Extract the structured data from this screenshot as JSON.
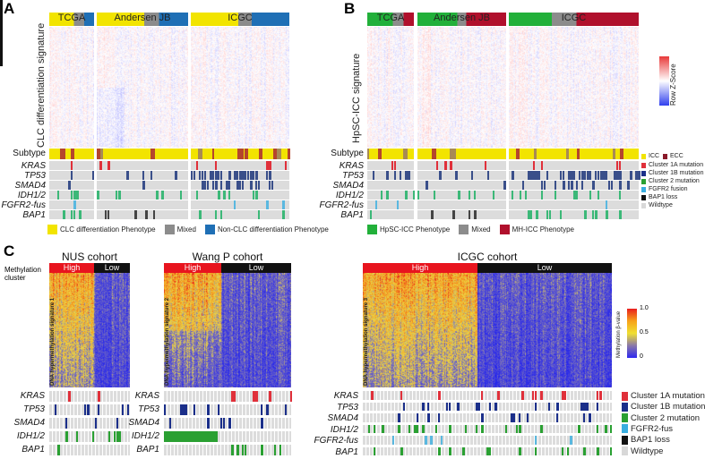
{
  "panels": {
    "A": {
      "label": "A",
      "signature_label": "CLC differentiation signature",
      "groups": [
        "TCGA",
        "Andersen JB",
        "ICGC"
      ],
      "rows": [
        "Subtype",
        "KRAS",
        "TP53",
        "SMAD4",
        "IDH1/2",
        "FGFR2-fus",
        "BAP1"
      ],
      "legend": [
        {
          "label": "CLC differentiation Phenotype",
          "color": "#f2e400"
        },
        {
          "label": "Mixed",
          "color": "#8c8c8c"
        },
        {
          "label": "Non-CLC differentiation Phenotype",
          "color": "#1f6fb5"
        }
      ]
    },
    "B": {
      "label": "B",
      "signature_label": "HpSC-ICC signature",
      "groups": [
        "TCGA",
        "Andersen JB",
        "ICGC"
      ],
      "rows": [
        "Subtype",
        "KRAS",
        "TP53",
        "SMAD4",
        "IDH1/2",
        "FGFR2-fus",
        "BAP1"
      ],
      "colorbar_label": "Row Z-Score",
      "legend": [
        {
          "label": "HpSC-ICC Phenotype",
          "color": "#22b03a"
        },
        {
          "label": "Mixed",
          "color": "#8c8c8c"
        },
        {
          "label": "MH-ICC Phenotype",
          "color": "#b0102c"
        }
      ],
      "side_legend": [
        {
          "label": "ICC",
          "color": "#f2e400"
        },
        {
          "label": "ECC",
          "color": "#8b1a2a"
        },
        {
          "label": "Cluster 1A mutation",
          "color": "#e0303a"
        },
        {
          "label": "Cluster 1B mutation",
          "color": "#1b2f8a"
        },
        {
          "label": "Cluster 2 mutation",
          "color": "#2aa032"
        },
        {
          "label": "FGFR2 fusion",
          "color": "#3aaee0"
        },
        {
          "label": "BAP1 loss",
          "color": "#111111"
        },
        {
          "label": "Wildtype",
          "color": "#d8d8d8"
        }
      ]
    },
    "C": {
      "label": "C",
      "methylation_label": "Methylation cluster",
      "high": "High",
      "low": "Low",
      "cohorts": [
        {
          "title": "NUS cohort",
          "signature": "DNA hypermethylation signature 1",
          "rows": [
            "KRAS",
            "TP53",
            "SMAD4",
            "IDH1/2",
            "BAP1"
          ]
        },
        {
          "title": "Wang P cohort",
          "signature": "DNA hypermethylation signature 2",
          "rows": [
            "KRAS",
            "TP53",
            "SMAD4",
            "IDH1/2",
            "BAP1"
          ]
        },
        {
          "title": "ICGC cohort",
          "signature": "DNA hypermethylation signature 3",
          "rows": [
            "KRAS",
            "TP53",
            "SMAD4",
            "IDH1/2",
            "FGFR2-fus",
            "BAP1"
          ]
        }
      ],
      "colorbar_label": "Methylation β-value",
      "colorbar_ticks": [
        "1.0",
        "0.5",
        "0"
      ],
      "legend": [
        {
          "label": "Cluster 1A mutation",
          "color": "#e0303a"
        },
        {
          "label": "Cluster 1B mutation",
          "color": "#1b2f8a"
        },
        {
          "label": "Cluster 2 mutation",
          "color": "#2aa032"
        },
        {
          "label": "FGFR2-fus",
          "color": "#3aaee0"
        },
        {
          "label": "BAP1 loss",
          "color": "#111111"
        },
        {
          "label": "Wildtype",
          "color": "#d8d8d8"
        }
      ]
    }
  },
  "chart_data": [
    {
      "type": "heatmap",
      "panel": "A",
      "ylabel": "CLC differentiation signature",
      "column_groups": [
        "TCGA",
        "Andersen JB",
        "ICGC"
      ],
      "colorscale": "blue-white-red (Row Z-Score)",
      "annotation_rows": [
        "Subtype",
        "KRAS",
        "TP53",
        "SMAD4",
        "IDH1/2",
        "FGFR2-fus",
        "BAP1"
      ]
    },
    {
      "type": "heatmap",
      "panel": "B",
      "ylabel": "HpSC-ICC signature",
      "column_groups": [
        "TCGA",
        "Andersen JB",
        "ICGC"
      ],
      "colorscale": "blue-white-red (Row Z-Score)",
      "annotation_rows": [
        "Subtype",
        "KRAS",
        "TP53",
        "SMAD4",
        "IDH1/2",
        "FGFR2-fus",
        "BAP1"
      ]
    },
    {
      "type": "heatmap",
      "panel": "C",
      "cohorts": [
        "NUS cohort",
        "Wang P cohort",
        "ICGC cohort"
      ],
      "column_groups": [
        "High",
        "Low"
      ],
      "colorscale": "blue-yellow-red (Methylation β-value)",
      "zlim": [
        0,
        1.0
      ]
    }
  ]
}
